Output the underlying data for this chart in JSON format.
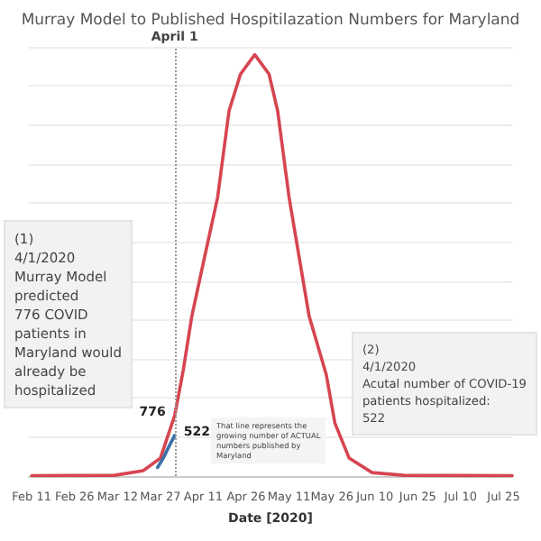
{
  "chart_data": {
    "type": "line",
    "title": "Murray Model to Published Hospitilazation Numbers for Maryland",
    "xlabel": "Date [2020]",
    "xlim": [
      "2020-02-10",
      "2020-07-28"
    ],
    "xticks": [
      {
        "value": "2020-02-11",
        "label": "Feb 11"
      },
      {
        "value": "2020-02-26",
        "label": "Feb 26"
      },
      {
        "value": "2020-03-12",
        "label": "Mar 12"
      },
      {
        "value": "2020-03-27",
        "label": "Mar 27"
      },
      {
        "value": "2020-04-11",
        "label": "Apr 11"
      },
      {
        "value": "2020-04-26",
        "label": "Apr 26"
      },
      {
        "value": "2020-05-11",
        "label": "May 11"
      },
      {
        "value": "2020-05-26",
        "label": "May 26"
      },
      {
        "value": "2020-06-10",
        "label": "Jun 10"
      },
      {
        "value": "2020-06-25",
        "label": "Jun 25"
      },
      {
        "value": "2020-07-10",
        "label": "Jul 10"
      },
      {
        "value": "2020-07-25",
        "label": "Jul 25"
      }
    ],
    "tick_labels": "x",
    "grid": "y",
    "marker": "none",
    "line_style": "solid",
    "series": [
      {
        "color": "#d64550",
        "x": [
          "2020-02-11",
          "2020-03-11",
          "2020-03-21",
          "2020-03-27",
          "2020-04-01",
          "2020-04-04",
          "2020-04-07",
          "2020-04-11",
          "2020-04-16",
          "2020-04-20",
          "2020-04-24",
          "2020-04-29",
          "2020-05-04",
          "2020-05-07",
          "2020-05-11",
          "2020-05-18",
          "2020-05-24",
          "2020-05-27",
          "2020-06-01",
          "2020-06-09",
          "2020-06-20",
          "2020-07-28"
        ],
        "values": [
          5,
          10,
          70,
          230,
          776,
          1360,
          2050,
          2730,
          3570,
          4680,
          5150,
          5400,
          5150,
          4680,
          3570,
          2050,
          1300,
          680,
          230,
          45,
          10,
          5
        ],
        "value_labels": [
          null,
          null,
          null,
          null,
          "776",
          null,
          null,
          null,
          null,
          null,
          null,
          null,
          null,
          null,
          null,
          null,
          null,
          null,
          null,
          null,
          null,
          null
        ]
      },
      {
        "color": "#3a6fa8",
        "x": [
          "2020-03-26",
          "2020-03-28",
          "2020-03-30",
          "2020-04-01"
        ],
        "values": [
          110,
          230,
          380,
          522
        ],
        "value_labels": [
          null,
          null,
          null,
          "522"
        ]
      }
    ],
    "ref_lines": [
      {
        "axis": "x",
        "value": "2020-04-01",
        "label": "April 1",
        "line_style": "dotted",
        "color": "#999999"
      }
    ],
    "annotations": [
      "(1)\n4/1/2020\nMurray Model\npredicted\n776 COVID\npatients in\nMaryland would\nalready be\nhospitalized",
      "(2)\n4/1/2020\nAcutal number of COVID-19\npatients hospitalized:\n522",
      "That line represents the\ngrowing number of ACTUAL\nnumbers published by\nMaryland"
    ]
  }
}
